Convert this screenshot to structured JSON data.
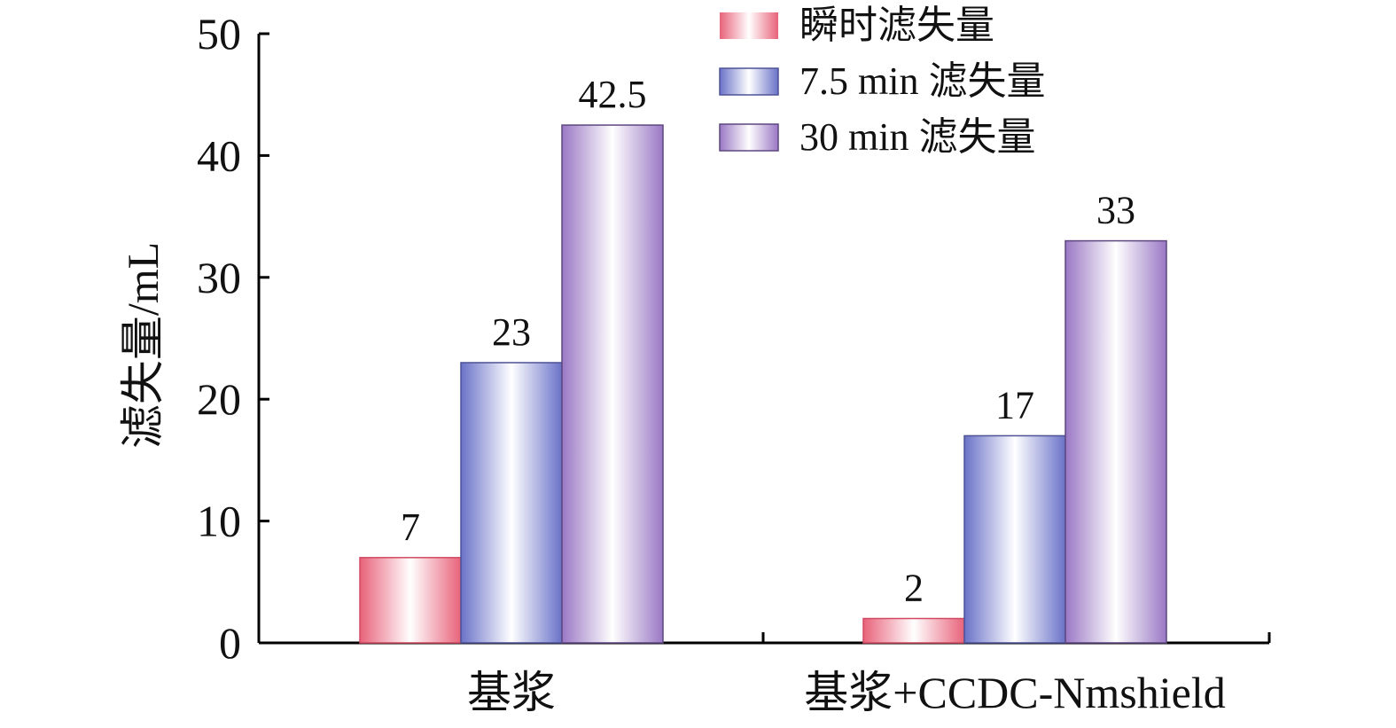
{
  "chart_data": {
    "type": "bar",
    "title": "",
    "xlabel": "",
    "ylabel": "滤失量/mL",
    "ylim": [
      0,
      50
    ],
    "yticks": [
      0,
      10,
      20,
      30,
      40,
      50
    ],
    "categories": [
      "基浆",
      "基浆+CCDC-Nmshield"
    ],
    "series": [
      {
        "name": "瞬时滤失量",
        "values": [
          7,
          2
        ],
        "color": "#e8627a",
        "edge": "#d24a62"
      },
      {
        "name": "7.5 min 滤失量",
        "values": [
          23,
          17
        ],
        "color": "#6a72c8",
        "edge": "#4d5296"
      },
      {
        "name": "30 min 滤失量",
        "values": [
          42.5,
          33
        ],
        "color": "#9a78c4",
        "edge": "#5e4780"
      }
    ],
    "value_labels": [
      [
        "7",
        "2"
      ],
      [
        "23",
        "17"
      ],
      [
        "42.5",
        "33"
      ]
    ],
    "legend_position": "top-center",
    "grid": false
  }
}
